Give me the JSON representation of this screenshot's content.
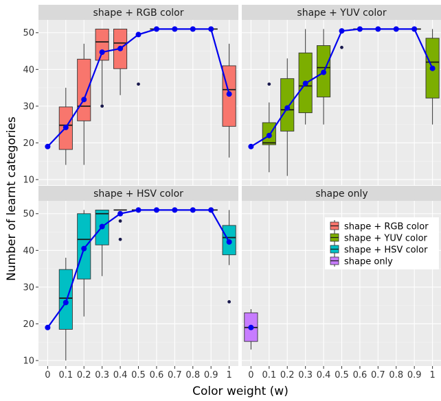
{
  "chart_data": {
    "type": "box",
    "xlabel": "Color weight (w)",
    "ylabel": "Number of learnt categories",
    "x_ticks": [
      "0",
      "0.1",
      "0.2",
      "0.3",
      "0.4",
      "0.5",
      "0.6",
      "0.7",
      "0.8",
      "0.9",
      "1"
    ],
    "ylim": [
      8.5,
      53.5
    ],
    "y_ticks": [
      10,
      20,
      30,
      40,
      50
    ],
    "grid": true,
    "legend_position": "right",
    "legend": [
      {
        "name": "shape + RGB color",
        "color": "#F8766D"
      },
      {
        "name": "shape + YUV color",
        "color": "#7CAE00"
      },
      {
        "name": "shape + HSV color",
        "color": "#00BFC4"
      },
      {
        "name": "shape only",
        "color": "#C77CFF"
      }
    ],
    "mean_line_color": "#0000EE",
    "panels": [
      {
        "title": "shape + RGB color",
        "color": "#F8766D",
        "boxes": [
          {
            "x": 0.1,
            "q1": 18.2,
            "median": 24.8,
            "q3": 29.8,
            "low": 14,
            "high": 35
          },
          {
            "x": 0.2,
            "q1": 26,
            "median": 30,
            "q3": 42.8,
            "low": 14,
            "high": 47
          },
          {
            "x": 0.3,
            "q1": 42.5,
            "median": 47.5,
            "q3": 51,
            "low": 30,
            "high": 51
          },
          {
            "x": 0.4,
            "q1": 40.2,
            "median": 47.2,
            "q3": 51,
            "low": 33,
            "high": 51
          },
          {
            "x": 1,
            "q1": 24.5,
            "median": 34.5,
            "q3": 41,
            "low": 16,
            "high": 47
          }
        ],
        "outliers": [
          [
            0.3,
            30
          ],
          [
            0.5,
            36
          ],
          [
            0.6,
            51
          ],
          [
            0.7,
            51
          ],
          [
            0.8,
            51
          ],
          [
            0.9,
            51
          ]
        ],
        "mean": [
          [
            0,
            19
          ],
          [
            0.1,
            24.2
          ],
          [
            0.2,
            31.8
          ],
          [
            0.3,
            44.7
          ],
          [
            0.4,
            45.7
          ],
          [
            0.5,
            49.5
          ],
          [
            0.6,
            51
          ],
          [
            0.7,
            51
          ],
          [
            0.8,
            51
          ],
          [
            0.9,
            51
          ],
          [
            1,
            33.3
          ]
        ]
      },
      {
        "title": "shape + YUV color",
        "color": "#7CAE00",
        "boxes": [
          {
            "x": 0.1,
            "q1": 19.5,
            "median": 20,
            "q3": 25.5,
            "low": 12,
            "high": 31
          },
          {
            "x": 0.2,
            "q1": 23.2,
            "median": 29,
            "q3": 37.5,
            "low": 11,
            "high": 43
          },
          {
            "x": 0.3,
            "q1": 28.2,
            "median": 35.5,
            "q3": 44.5,
            "low": 25,
            "high": 51
          },
          {
            "x": 0.4,
            "q1": 32.5,
            "median": 40.5,
            "q3": 46.5,
            "low": 25,
            "high": 51
          },
          {
            "x": 1,
            "q1": 32.2,
            "median": 42,
            "q3": 48.5,
            "low": 25,
            "high": 51
          }
        ],
        "outliers": [
          [
            0.1,
            36
          ],
          [
            0.5,
            46
          ],
          [
            0.6,
            51
          ],
          [
            0.7,
            51
          ],
          [
            0.8,
            51
          ],
          [
            0.9,
            51
          ]
        ],
        "mean": [
          [
            0,
            19
          ],
          [
            0.1,
            22
          ],
          [
            0.2,
            29.5
          ],
          [
            0.3,
            36.2
          ],
          [
            0.4,
            39.2
          ],
          [
            0.5,
            50.5
          ],
          [
            0.6,
            51
          ],
          [
            0.7,
            51
          ],
          [
            0.8,
            51
          ],
          [
            0.9,
            51
          ],
          [
            1,
            40.3
          ]
        ]
      },
      {
        "title": "shape + HSV color",
        "color": "#00BFC4",
        "boxes": [
          {
            "x": 0.1,
            "q1": 18.5,
            "median": 27,
            "q3": 34.8,
            "low": 10,
            "high": 38
          },
          {
            "x": 0.2,
            "q1": 32.2,
            "median": 43,
            "q3": 50,
            "low": 22,
            "high": 51
          },
          {
            "x": 0.3,
            "q1": 41.5,
            "median": 50,
            "q3": 51,
            "low": 33,
            "high": 51
          },
          {
            "x": 1,
            "q1": 38.8,
            "median": 43.5,
            "q3": 46.8,
            "low": 36,
            "high": 51
          }
        ],
        "outliers": [
          [
            0.4,
            43
          ],
          [
            0.4,
            48
          ],
          [
            0.4,
            51
          ],
          [
            0.5,
            51
          ],
          [
            0.6,
            51
          ],
          [
            0.7,
            51
          ],
          [
            0.8,
            51
          ],
          [
            0.9,
            51
          ],
          [
            1,
            26
          ]
        ],
        "mean": [
          [
            0,
            19
          ],
          [
            0.1,
            25.8
          ],
          [
            0.2,
            40.5
          ],
          [
            0.3,
            46.5
          ],
          [
            0.4,
            50
          ],
          [
            0.5,
            51
          ],
          [
            0.6,
            51
          ],
          [
            0.7,
            51
          ],
          [
            0.8,
            51
          ],
          [
            0.9,
            51
          ],
          [
            1,
            42.3
          ]
        ]
      },
      {
        "title": "shape only",
        "color": "#C77CFF",
        "boxes": [
          {
            "x": 0,
            "q1": 15.2,
            "median": 19,
            "q3": 23,
            "low": 13,
            "high": 24
          }
        ],
        "outliers": [],
        "mean": [
          [
            0,
            19
          ]
        ]
      }
    ]
  }
}
